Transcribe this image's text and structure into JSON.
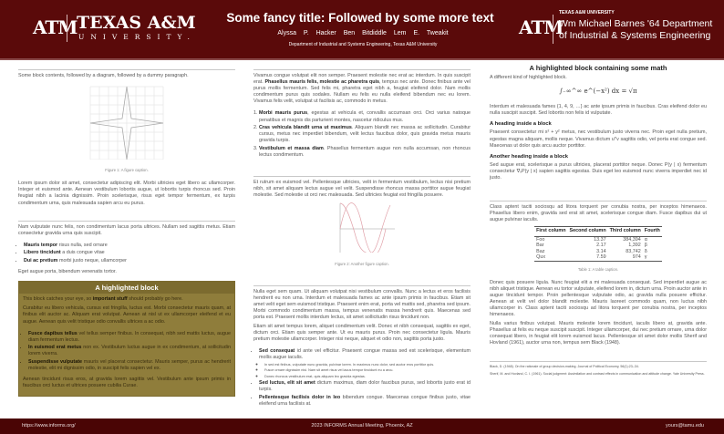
{
  "header": {
    "logo_mark": "ATM",
    "university": "TEXAS A&M",
    "university_sub": "UNIVERSITY.",
    "title": "Some fancy title: Followed by some more text",
    "authors": "Alyssa P. Hacker  Ben Bitdiddle  Lem E. Tweakit",
    "affiliation": "Department of Industrial and Systems Engineering, Texas A&M University",
    "right_small": "TEXAS A&M UNIVERSITY",
    "right_dept": "Wm Michael Barnes '64 Department of Industrial & Systems Engineering"
  },
  "col1": {
    "intro": "Some block contents, followed by a diagram, followed by a dummy paragraph.",
    "fig1_caption": "Figure 1: A figure caption.",
    "p1": "Lorem ipsum dolor sit amet, consectetur adipiscing elit. Morbi ultricies eget libero ac ullamcorper. Integer et euismod ante. Aenean vestibulum lobortis augue, ut lobortis turpis rhoncus sed. Proin feugiat nibh a lacinia dignissim. Proin scelerisque, risus eget tempor fermentum, ex turpis condimentum urna, quis malesuada sapien arcu eu purus.",
    "p2": "Nam vulputate nunc felis, non condimentum lacus porta ultrices. Nullam sed sagittis metus. Etiam consectetur gravida urna quis suscipit.",
    "bullets": [
      {
        "b": "Mauris tempor",
        "t": " risus nulla, sed ornare"
      },
      {
        "b": "Libero tincidunt",
        "t": " a duis congue vitae"
      },
      {
        "b": "Dui ac pretium",
        "t": " morbi justo neque, ullamcorper"
      }
    ],
    "p3": "Eget augue porta, bibendum venenatis tortor.",
    "hl_title": "A highlighted block",
    "hl_p1a": "This block catches your eye, so ",
    "hl_p1b": "important stuff",
    "hl_p1c": " should probably go here.",
    "hl_p2": "Curabitur eu libero vehicula, cursus est fringilla, luctus est. Morbi consectetur mauris quam, at finibus elit auctor ac. Aliquam erat volutpat. Aenean at nisl ut ex ullamcorper eleifend et eu augue. Aenean quis velit tristique odio convallis ultrices a ac odio.",
    "hl_bullets": [
      {
        "b": "Fusce dapibus tellus",
        "t": " vel tellus semper finibus. In consequat, nibh sed mattis luctus, augue diam fermentum lectus."
      },
      {
        "b": "In euismod erat metus",
        "t": " non ex. Vestibulum luctus augue in ex condimentum, at sollicitudin lorem viverra."
      },
      {
        "b": "Suspendisse vulputate",
        "t": " mauris vel placerat consectetur. Mauris semper, purus ac hendrerit molestie, elit mi dignissim odio, in suscipit felis sapien vel ex."
      }
    ],
    "hl_p3": "Aenean tincidunt risus eros, at gravida lorem sagittis vel. Vestibulum ante ipsum primis in faucibus orci luctus et ultrices posuere cubilia Curae."
  },
  "col2": {
    "p1a": "Vivamus congue volutpat elit non semper. Praesent molestie nec erat ac interdum. In quis suscipit erat. ",
    "p1b": "Phasellus mauris felis, molestie ac pharetra quis",
    "p1c": ", tempus nec ante. Donec finibus ante vel purus mollis fermentum. Sed felis mi, pharetra eget nibh a, feugiat eleifend dolor. Nam mollis condimentum purus quis sodales. Nullam eu felis eu nulla eleifend bibendum nec eu lorem. Vivamus felis velit, volutpat ut facilisis ac, commodo in metus.",
    "list": [
      {
        "b": "Morbi mauris purus",
        "t": ", egestas at vehicula et, convallis accumsan orci. Orci varius natoque penatibus et magnis dis parturient montes, nascetur ridiculus mus."
      },
      {
        "b": "Cras vehicula blandit urna ut maximus",
        "t": ". Aliquam blandit nec massa ac sollicitudin. Curabitur cursus, metus nec imperdiet bibendum, velit lectus faucibus dolor, quis gravida metus mauris gravida turpis."
      },
      {
        "b": "Vestibulum et massa diam",
        "t": ". Phasellus fermentum augue non nulla accumsan, non rhoncus lectus condimentum."
      }
    ],
    "p2": "Et rutrum ex euismod vel. Pellentesque ultricies, velit in fermentum vestibulum, lectus nisi pretium nibh, sit amet aliquam lectus augue vel velit. Suspendisse rhoncus massa porttitor augue feugiat molestie. Sed molestie ut orci nec malesuada. Sed ultricies feugiat est fringilla posuere.",
    "fig2_caption": "Figure 2: Another figure caption.",
    "p3": "Nulla eget sem quam. Ut aliquam volutpat nisi vestibulum convallis. Nunc a lectus et eros facilisis hendrerit eu non urna. Interdum et malesuada fames ac ante ipsum primis in faucibus. Etiam sit amet velit eget sem euismod tristique. Praesent enim erat, porta vel mattis sed, pharetra sed ipsum. Morbi commodo condimentum massa, tempus venenatis massa hendrerit quis. Maecenas sed porta est. Praesent mollis interdum lectus, sit amet sollicitudin risus tincidunt non.",
    "p4": "Etiam sit amet tempus lorem, aliquet condimentum velit. Donec et nibh consequat, sagittis ex eget, dictum orci. Etiam quis semper ante. Ut eu mauris purus. Proin nec consectetur ligula. Mauris pretium molestie ullamcorper. Integer nisi neque, aliquet et odio non, sagittis porta justo.",
    "bullets": [
      {
        "b": "Sed consequat",
        "t": " id ante vel efficitur. Praesent congue massa sed est scelerisque, elementum mollis augue iaculis."
      },
      {
        "b": "Sed luctus, elit sit amet",
        "t": " dictum maximus, diam dolor faucibus purus, sed lobortis justo erat id turpis."
      },
      {
        "b": "Pellentesque facilisis dolor in leo",
        "t": " bibendum congue. Maecenas congue finibus justo, vitae eleifend urna facilisis at."
      }
    ],
    "sub_bullets": [
      "In sed est finibus, vulputate nunc gravida, pulvinar lorem. In maximus nunc dolor, sed auctor eros porttitor quis.",
      "Fusce ornare dignissim nisi. Nam sit amet risus vel lacus tempor tincidunt eu a arcu.",
      "Donec rhoncus vestibulum erat, quis aliquam leo gravida egestas."
    ]
  },
  "col3": {
    "heading": "A highlighted block containing some math",
    "p1": "A different kind of highlighted block.",
    "equation": "∫₋∞^∞ e^(−x²) dx = √π",
    "p2": "Interdum et malesuada fames {1, 4, 9, …} ac ante ipsum primis in faucibus. Cras eleifend dolor eu nulla suscipit suscipit. Sed lobortis non felis id vulputate.",
    "h1": "A heading inside a block",
    "p3": "Praesent consectetur mi x² + y² metus, nec vestibulum justo viverra nec. Proin eget nulla pretium, egestas magna aliquam, mollis neque. Vivamus dictum uᵀv sagittis odio, vel porta erat congue sed. Maecenas ut dolor quis arcu auctor porttitor.",
    "h2": "Another heading inside a block",
    "p4": "Sed augue erat, scelerisque a purus ultricies, placerat porttitor neque. Donec P(y | x) fermentum consectetur ∇ₓP(y | x) sapien sagittis egestas. Duis eget leo euismod nunc viverra imperdiet nec id justo.",
    "p5": "Class aptent taciti sociosqu ad litora torquent per conubia nostra, per inceptos himenaeos. Phasellus libero enim, gravida sed erat sit amet, scelerisque congue diam. Fusce dapibus dui ut augue pulvinar iaculis.",
    "table": {
      "headers": [
        "First column",
        "Second column",
        "Third column",
        "Fourth"
      ],
      "rows": [
        [
          "Foo",
          "13.37",
          "384,394",
          "α"
        ],
        [
          "Bar",
          "2.17",
          "1,392",
          "β"
        ],
        [
          "Baz",
          "3.14",
          "83,742",
          "δ"
        ],
        [
          "Qux",
          "7.59",
          "974",
          "γ"
        ]
      ]
    },
    "table_caption": "Table 1: A table caption.",
    "p6": "Donec quis posuere ligula. Nunc feugiat elit a mi malesuada consequat. Sed imperdiet augue ac nibh aliquet tristique. Aenean eu tortor vulputate, eleifend lorem in, dictum urna. Proin auctor ante in augue tincidunt tempor. Proin pellentesque vulputate odio, ac gravida nulla posuere efficitur. Aenean at velit vel dolor blandit molestie. Mauris laoreet commodo quam, non luctus nibh ullamcorper in. Class aptent taciti sociosqu ad litora torquent per conubia nostra, per inceptos himenaeos.",
    "p7": "Nulla varius finibus volutpat. Mauris molestie lorem tincidunt, iaculis libero at, gravida ante. Phasellus at felis eu neque suscipit suscipit. Integer ullamcorper, dui nec pretium ornare, urna dolor consequat libero, in feugiat elit lorem euismod lacus. Pellentesque sit amet dolor mollis Sherif and Hovland (1961), auctor urna non, tempus sem Black (1948).",
    "refs": [
      "Black, D. (1948). On the rationale of group decision-making. Journal of Political Economy, 56(1):23–34.",
      "Sherif, M. and Hovland, C. I. (1961). Social judgment: Assimilation and contrast effects in communication and attitude change. Yale University Press."
    ]
  },
  "footer": {
    "left": "https://www.informs.org/",
    "center": "2023 INFORMS Annual Meeting, Phoenix, AZ",
    "right": "yours@tamu.edu"
  },
  "colors": {
    "maroon": "#5a0a0a",
    "highlight": "#8f7d3b"
  }
}
